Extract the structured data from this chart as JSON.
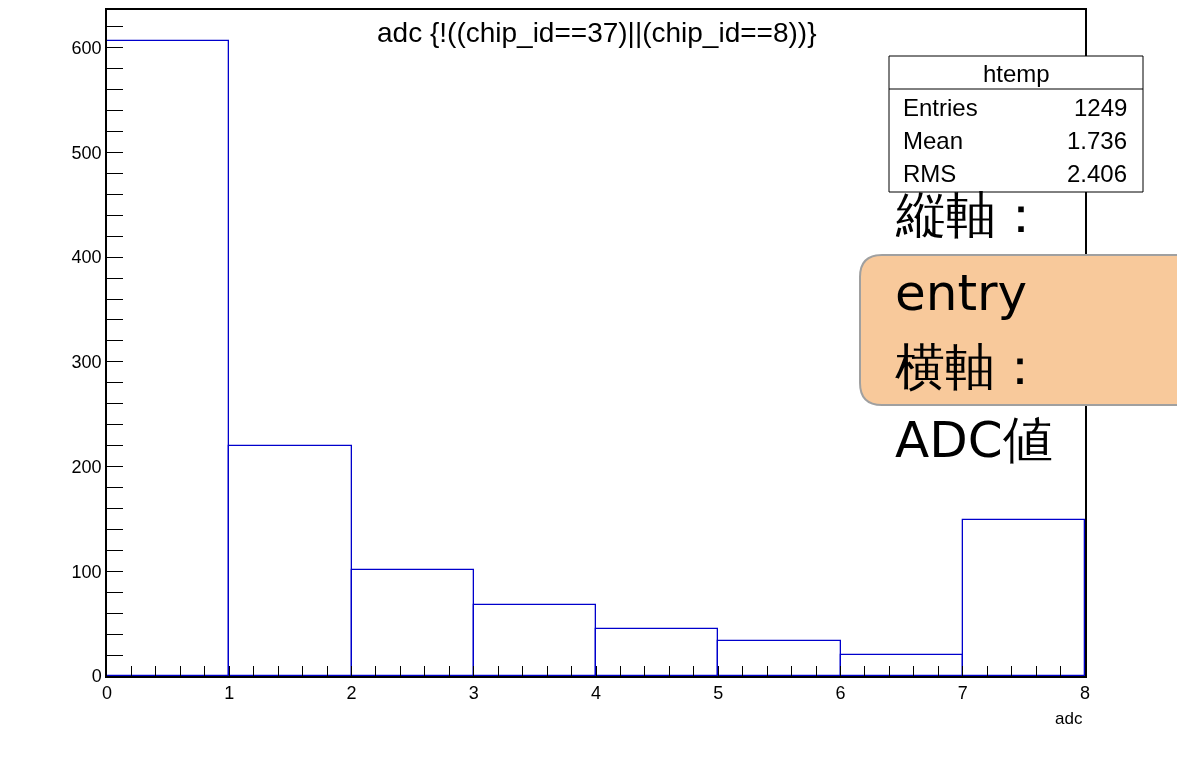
{
  "chart_data": {
    "type": "histogram",
    "title": "adc {!((chip_id==37)||(chip_id==8))}",
    "xlabel": "adc",
    "bins": [
      0,
      1,
      2,
      3,
      4,
      5,
      6,
      7,
      8
    ],
    "values": [
      606,
      220,
      101,
      68,
      45,
      33,
      20,
      149
    ],
    "color": "#0000cc",
    "xlim": [
      0,
      8
    ],
    "xticks": [
      0,
      {
        "value": 0.2,
        "label": null
      },
      {
        "value": 0.4,
        "label": null
      },
      {
        "value": 0.6,
        "label": null
      },
      {
        "value": 0.8,
        "label": null
      },
      1,
      {
        "value": 1.2,
        "label": null
      },
      {
        "value": 1.4,
        "label": null
      },
      {
        "value": 1.6,
        "label": null
      },
      {
        "value": 1.8,
        "label": null
      },
      2,
      {
        "value": 2.2,
        "label": null
      },
      {
        "value": 2.4,
        "label": null
      },
      {
        "value": 2.6,
        "label": null
      },
      {
        "value": 2.8,
        "label": null
      },
      3,
      {
        "value": 3.2,
        "label": null
      },
      {
        "value": 3.4,
        "label": null
      },
      {
        "value": 3.6,
        "label": null
      },
      {
        "value": 3.8,
        "label": null
      },
      4,
      {
        "value": 4.2,
        "label": null
      },
      {
        "value": 4.4,
        "label": null
      },
      {
        "value": 4.6,
        "label": null
      },
      {
        "value": 4.8,
        "label": null
      },
      5,
      {
        "value": 5.2,
        "label": null
      },
      {
        "value": 5.4,
        "label": null
      },
      {
        "value": 5.6,
        "label": null
      },
      {
        "value": 5.8,
        "label": null
      },
      6,
      {
        "value": 6.2,
        "label": null
      },
      {
        "value": 6.4,
        "label": null
      },
      {
        "value": 6.6,
        "label": null
      },
      {
        "value": 6.8,
        "label": null
      },
      7,
      {
        "value": 7.2,
        "label": null
      },
      {
        "value": 7.4,
        "label": null
      },
      {
        "value": 7.6,
        "label": null
      },
      {
        "value": 7.8,
        "label": null
      },
      8
    ],
    "ylim": [
      0,
      636
    ],
    "yticks": [
      0,
      {
        "value": 20,
        "label": null
      },
      {
        "value": 40,
        "label": null
      },
      {
        "value": 60,
        "label": null
      },
      {
        "value": 80,
        "label": null
      },
      100,
      {
        "value": 120,
        "label": null
      },
      {
        "value": 140,
        "label": null
      },
      {
        "value": 160,
        "label": null
      },
      {
        "value": 180,
        "label": null
      },
      200,
      {
        "value": 220,
        "label": null
      },
      {
        "value": 240,
        "label": null
      },
      {
        "value": 260,
        "label": null
      },
      {
        "value": 280,
        "label": null
      },
      300,
      {
        "value": 320,
        "label": null
      },
      {
        "value": 340,
        "label": null
      },
      {
        "value": 360,
        "label": null
      },
      {
        "value": 380,
        "label": null
      },
      400,
      {
        "value": 420,
        "label": null
      },
      {
        "value": 440,
        "label": null
      },
      {
        "value": 460,
        "label": null
      },
      {
        "value": 480,
        "label": null
      },
      500,
      {
        "value": 520,
        "label": null
      },
      {
        "value": 540,
        "label": null
      },
      {
        "value": 560,
        "label": null
      },
      {
        "value": 580,
        "label": null
      },
      600,
      {
        "value": 620,
        "label": null
      }
    ],
    "grid": false,
    "legend": false,
    "annotations": [
      "htemp",
      "Entries",
      "1249",
      "Mean",
      "1.736",
      "RMS",
      "2.406",
      "縦軸：",
      "entry",
      "横軸：",
      "ADC値"
    ]
  }
}
